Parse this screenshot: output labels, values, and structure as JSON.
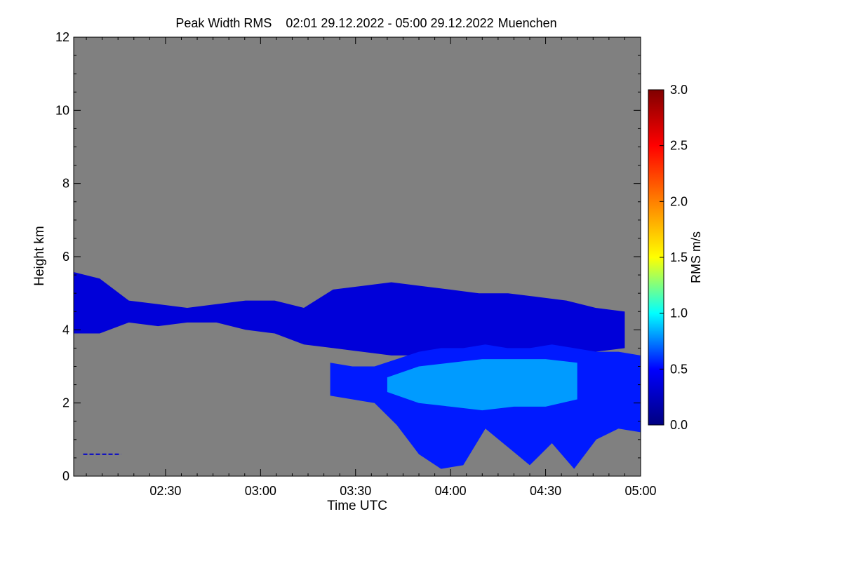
{
  "chart_data": {
    "type": "heatmap",
    "title": "Peak Width RMS",
    "period": "02:01 29.12.2022 - 05:00 29.12.2022",
    "location": "Muenchen",
    "xlabel": "Time UTC",
    "ylabel": "Height km",
    "x_ticks": [
      {
        "value": 30,
        "label": "02:30"
      },
      {
        "value": 60,
        "label": "03:00"
      },
      {
        "value": 90,
        "label": "03:30"
      },
      {
        "value": 120,
        "label": "04:00"
      },
      {
        "value": 150,
        "label": "04:30"
      },
      {
        "value": 180,
        "label": "05:00"
      }
    ],
    "x_range": [
      "02:01",
      "05:00"
    ],
    "y_ticks": [
      0,
      2,
      4,
      6,
      8,
      10,
      12
    ],
    "ylim": [
      0,
      12
    ],
    "colorbar": {
      "label": "RMS m/s",
      "range": [
        0.0,
        3.0
      ],
      "ticks": [
        "0.0",
        "0.5",
        "1.0",
        "1.5",
        "2.0",
        "2.5",
        "3.0"
      ],
      "colors": [
        "#000080",
        "#0000ff",
        "#00ffff",
        "#ffff00",
        "#ff8000",
        "#ff0000",
        "#800000"
      ]
    },
    "no_data_color": "#808080",
    "bands": [
      {
        "name": "upper layer",
        "approx_rms": 0.35,
        "x_start": 0,
        "x_end": 175,
        "top": [
          5.6,
          5.4,
          4.8,
          4.7,
          4.6,
          4.7,
          4.8,
          4.8,
          4.6,
          5.1,
          5.2,
          5.3,
          5.2,
          5.1,
          5.0,
          5.0,
          4.9,
          4.8,
          4.6,
          4.5
        ],
        "bottom": [
          3.9,
          3.9,
          4.2,
          4.1,
          4.2,
          4.2,
          4.0,
          3.9,
          3.6,
          3.5,
          3.4,
          3.3,
          3.3,
          3.3,
          3.3,
          3.3,
          3.4,
          3.4,
          3.4,
          3.5
        ]
      },
      {
        "name": "lower layer",
        "approx_rms": 0.55,
        "x_start": 82,
        "x_end": 180,
        "top": [
          3.1,
          3.0,
          3.0,
          3.2,
          3.4,
          3.5,
          3.5,
          3.6,
          3.5,
          3.5,
          3.6,
          3.5,
          3.4,
          3.4,
          3.3
        ],
        "bottom": [
          2.2,
          2.1,
          2.0,
          1.4,
          0.6,
          0.2,
          0.3,
          1.3,
          0.8,
          0.3,
          0.9,
          0.2,
          1.0,
          1.3,
          1.2
        ]
      },
      {
        "name": "enhanced core",
        "approx_rms": 0.85,
        "x_start": 100,
        "x_end": 160,
        "top": [
          2.7,
          3.0,
          3.1,
          3.2,
          3.2,
          3.2,
          3.1
        ],
        "bottom": [
          2.3,
          2.0,
          1.9,
          1.8,
          1.9,
          1.9,
          2.1
        ]
      }
    ],
    "near_surface_line": {
      "y": 0.6,
      "x_start": 4,
      "x_end": 16
    }
  }
}
